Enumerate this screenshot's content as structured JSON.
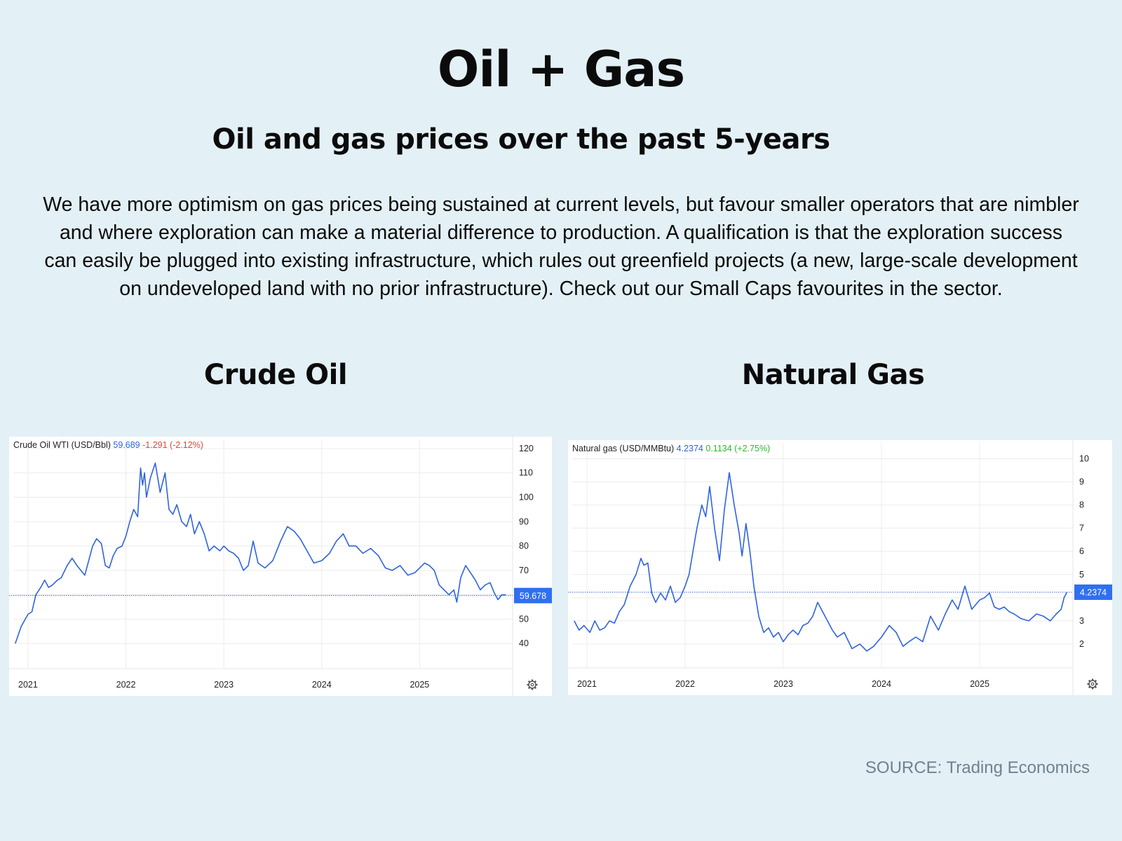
{
  "page": {
    "title": "Oil + Gas",
    "subtitle": "Oil and gas prices over the past 5-years",
    "body": "We have more optimism on gas prices being sustained at current levels, but favour smaller operators that are nimbler and where exploration can make a material difference to production. A qualification is that the exploration success can easily be plugged into existing infrastructure, which rules out greenfield projects (a new, large-scale development on undeveloped land with no prior infrastructure). Check out our Small Caps favourites in the sector.",
    "source": "SOURCE: Trading Economics"
  },
  "colors": {
    "line": "#2f63e0",
    "price_blue": "#2f63e0",
    "change_red": "#e0453a",
    "change_green": "#2eb82e",
    "badge": "#2f6ff0"
  },
  "chart_data": [
    {
      "panel_title": "Crude Oil",
      "type": "line",
      "series_label": "Crude Oil WTI (USD/Bbl)",
      "price": "59.689",
      "change": "-1.291 (-2.12%)",
      "change_color": "#e0453a",
      "last_value_label": "59.678",
      "last_value": 59.678,
      "x_tick_labels": [
        "2021",
        "2022",
        "2023",
        "2024",
        "2025"
      ],
      "x_ticks": [
        2021,
        2022,
        2023,
        2024,
        2025
      ],
      "xlim": [
        2020.85,
        2025.95
      ],
      "y_ticks": [
        40,
        50,
        60,
        70,
        80,
        90,
        100,
        110,
        120
      ],
      "y_tick_labels": [
        "40",
        "50",
        "",
        "70",
        "80",
        "90",
        "100",
        "110",
        "120"
      ],
      "ylim": [
        30,
        122
      ],
      "grid": true,
      "x": [
        2020.87,
        2020.93,
        2021.0,
        2021.04,
        2021.08,
        2021.13,
        2021.17,
        2021.21,
        2021.25,
        2021.3,
        2021.34,
        2021.4,
        2021.45,
        2021.5,
        2021.54,
        2021.58,
        2021.62,
        2021.66,
        2021.7,
        2021.75,
        2021.79,
        2021.83,
        2021.87,
        2021.91,
        2021.96,
        2022.0,
        2022.04,
        2022.08,
        2022.12,
        2022.15,
        2022.17,
        2022.19,
        2022.21,
        2022.23,
        2022.25,
        2022.3,
        2022.35,
        2022.4,
        2022.44,
        2022.48,
        2022.52,
        2022.57,
        2022.62,
        2022.66,
        2022.7,
        2022.75,
        2022.8,
        2022.85,
        2022.9,
        2022.96,
        2023.0,
        2023.05,
        2023.1,
        2023.15,
        2023.2,
        2023.25,
        2023.3,
        2023.35,
        2023.42,
        2023.5,
        2023.58,
        2023.65,
        2023.72,
        2023.78,
        2023.85,
        2023.92,
        2024.0,
        2024.08,
        2024.15,
        2024.22,
        2024.28,
        2024.35,
        2024.42,
        2024.5,
        2024.58,
        2024.65,
        2024.72,
        2024.8,
        2024.88,
        2024.95,
        2025.0,
        2025.05,
        2025.1,
        2025.15,
        2025.2,
        2025.25,
        2025.3,
        2025.35,
        2025.38,
        2025.42,
        2025.47,
        2025.52,
        2025.57,
        2025.62,
        2025.67,
        2025.72,
        2025.76,
        2025.8,
        2025.84,
        2025.88
      ],
      "y": [
        40,
        47,
        52,
        53,
        60,
        63,
        66,
        63,
        64,
        66,
        67,
        72,
        75,
        72,
        70,
        68,
        74,
        80,
        83,
        81,
        72,
        71,
        76,
        79,
        80,
        84,
        90,
        95,
        92,
        112,
        105,
        110,
        100,
        104,
        108,
        114,
        102,
        110,
        95,
        93,
        97,
        90,
        88,
        93,
        85,
        90,
        85,
        78,
        80,
        78,
        80,
        78,
        77,
        75,
        70,
        72,
        82,
        73,
        71,
        74,
        82,
        88,
        86,
        83,
        78,
        73,
        74,
        77,
        82,
        85,
        80,
        80,
        77,
        79,
        76,
        71,
        70,
        72,
        68,
        69,
        71,
        73,
        72,
        70,
        64,
        62,
        60,
        62,
        57,
        67,
        72,
        69,
        66,
        62,
        64,
        65,
        61,
        58,
        60,
        60
      ]
    },
    {
      "panel_title": "Natural Gas",
      "type": "line",
      "series_label": "Natural gas (USD/MMBtu)",
      "price": "4.2374",
      "change": "0.1134 (+2.75%)",
      "change_color": "#2eb82e",
      "last_value_label": "4.2374",
      "last_value": 4.2374,
      "x_tick_labels": [
        "2021",
        "2022",
        "2023",
        "2024",
        "2025"
      ],
      "x_ticks": [
        2021,
        2022,
        2023,
        2024,
        2025
      ],
      "xlim": [
        2020.85,
        2025.95
      ],
      "y_ticks": [
        2,
        3,
        4,
        5,
        6,
        7,
        8,
        9,
        10
      ],
      "y_tick_labels": [
        "2",
        "3",
        "",
        "5",
        "6",
        "7",
        "8",
        "9",
        "10"
      ],
      "ylim": [
        1,
        10.5
      ],
      "grid": true,
      "x": [
        2020.87,
        2020.92,
        2020.97,
        2021.03,
        2021.08,
        2021.13,
        2021.18,
        2021.23,
        2021.28,
        2021.33,
        2021.38,
        2021.44,
        2021.5,
        2021.55,
        2021.58,
        2021.62,
        2021.66,
        2021.7,
        2021.75,
        2021.8,
        2021.85,
        2021.9,
        2021.95,
        2022.0,
        2022.04,
        2022.08,
        2022.12,
        2022.17,
        2022.21,
        2022.25,
        2022.3,
        2022.35,
        2022.4,
        2022.45,
        2022.5,
        2022.55,
        2022.58,
        2022.62,
        2022.66,
        2022.7,
        2022.75,
        2022.8,
        2022.85,
        2022.9,
        2022.95,
        2023.0,
        2023.05,
        2023.1,
        2023.15,
        2023.2,
        2023.25,
        2023.3,
        2023.35,
        2023.45,
        2023.5,
        2023.55,
        2023.62,
        2023.7,
        2023.78,
        2023.85,
        2023.92,
        2024.0,
        2024.08,
        2024.15,
        2024.22,
        2024.28,
        2024.35,
        2024.42,
        2024.5,
        2024.58,
        2024.65,
        2024.72,
        2024.78,
        2024.85,
        2024.92,
        2025.0,
        2025.05,
        2025.1,
        2025.15,
        2025.2,
        2025.25,
        2025.3,
        2025.35,
        2025.42,
        2025.5,
        2025.58,
        2025.65,
        2025.72,
        2025.78,
        2025.83,
        2025.86,
        2025.89
      ],
      "y": [
        3.0,
        2.6,
        2.8,
        2.5,
        3.0,
        2.6,
        2.7,
        3.0,
        2.9,
        3.4,
        3.7,
        4.5,
        5.0,
        5.7,
        5.4,
        5.5,
        4.2,
        3.8,
        4.2,
        3.9,
        4.5,
        3.8,
        4.0,
        4.5,
        5.0,
        6.0,
        7.0,
        8.0,
        7.5,
        8.8,
        7.0,
        5.6,
        7.8,
        9.4,
        8.0,
        6.8,
        5.8,
        7.2,
        6.0,
        4.5,
        3.2,
        2.5,
        2.7,
        2.3,
        2.5,
        2.1,
        2.4,
        2.6,
        2.4,
        2.8,
        2.9,
        3.2,
        3.8,
        3.0,
        2.6,
        2.3,
        2.5,
        1.8,
        2.0,
        1.7,
        1.9,
        2.3,
        2.8,
        2.5,
        1.9,
        2.1,
        2.3,
        2.1,
        3.2,
        2.6,
        3.3,
        3.9,
        3.5,
        4.5,
        3.5,
        3.9,
        4.0,
        4.2,
        3.6,
        3.5,
        3.6,
        3.4,
        3.3,
        3.1,
        3.0,
        3.3,
        3.2,
        3.0,
        3.3,
        3.5,
        4.0,
        4.24
      ]
    }
  ]
}
